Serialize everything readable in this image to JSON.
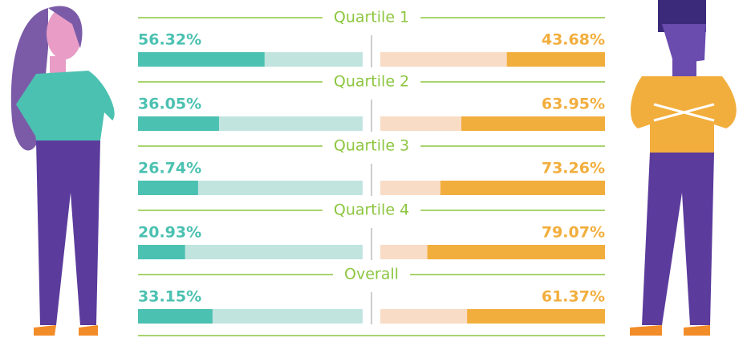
{
  "chart_data": {
    "type": "diverging-bar",
    "categories": [
      "Quartile 1",
      "Quartile 2",
      "Quartile 3",
      "Quartile 4",
      "Overall"
    ],
    "xlim": [
      0,
      100
    ],
    "series": [
      {
        "color": "#4bc1b1",
        "track_color": "#c1e4df",
        "values": [
          56.32,
          36.05,
          26.74,
          20.93,
          33.15
        ],
        "value_labels": [
          "56.32%",
          "36.05%",
          "26.74%",
          "20.93%",
          "33.15%"
        ]
      },
      {
        "color": "#f2ae3d",
        "track_color": "#f9dcc5",
        "values": [
          43.68,
          63.95,
          73.26,
          79.07,
          61.37
        ],
        "value_labels": [
          "43.68%",
          "63.95%",
          "73.26%",
          "79.07%",
          "61.37%"
        ]
      }
    ]
  }
}
